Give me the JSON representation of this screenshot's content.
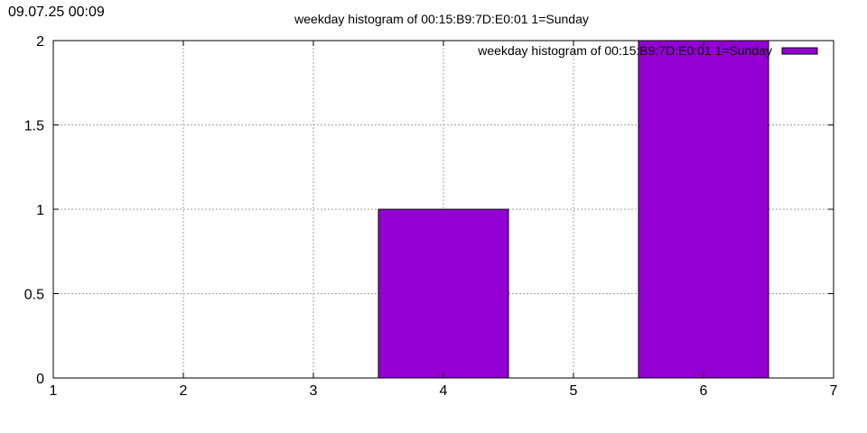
{
  "timestamp": "09.07.25 00:09",
  "chart_data": {
    "type": "bar",
    "title": "weekday histogram of 00:15:B9:7D:E0:01 1=Sunday",
    "legend": {
      "label": "weekday histogram of 00:15:B9:7D:E0:01 1=Sunday",
      "position": "top-right"
    },
    "x": [
      4,
      6
    ],
    "values": [
      1,
      2
    ],
    "bar_width": 1,
    "xlim": [
      1,
      7
    ],
    "ylim": [
      0,
      2
    ],
    "xticks": [
      "1",
      "2",
      "3",
      "4",
      "5",
      "6",
      "7"
    ],
    "yticks": [
      "0",
      "0.5",
      "1",
      "1.5",
      "2"
    ],
    "grid": true,
    "bar_color": "#9400d3",
    "xlabel": "",
    "ylabel": ""
  }
}
